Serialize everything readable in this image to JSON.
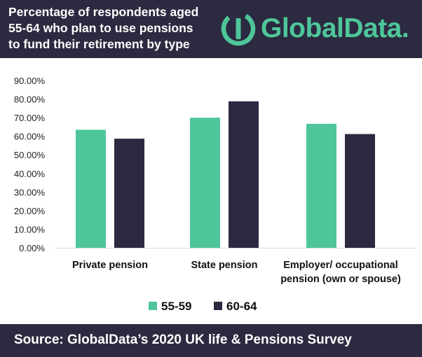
{
  "header": {
    "title_lines": [
      "Percentage of respondents aged",
      "55-64 who plan to use pensions",
      "to fund their retirement by type"
    ],
    "logo_text": "GlobalData."
  },
  "footer": {
    "source": "Source: GlobalData’s 2020 UK life & Pensions Survey"
  },
  "colors": {
    "header_bg": "#2b2a40",
    "series_55_59": "#4ec69a",
    "series_60_64": "#2b2a40",
    "logo": "#4ec69a"
  },
  "chart_data": {
    "type": "bar",
    "categories": [
      [
        "Private pension"
      ],
      [
        "State pension"
      ],
      [
        "Employer/ occupational",
        "pension (own or spouse)"
      ]
    ],
    "series": [
      {
        "name": "55-59",
        "color": "#4ec69a",
        "values": [
          63.5,
          70.0,
          66.7
        ]
      },
      {
        "name": "60-64",
        "color": "#2b2a40",
        "values": [
          58.7,
          78.8,
          61.2
        ]
      }
    ],
    "y_ticks": [
      "0.00%",
      "10.00%",
      "20.00%",
      "30.00%",
      "40.00%",
      "50.00%",
      "60.00%",
      "70.00%",
      "80.00%",
      "90.00%"
    ],
    "ylim": [
      0,
      90
    ],
    "grid": false,
    "legend_position": "bottom"
  }
}
